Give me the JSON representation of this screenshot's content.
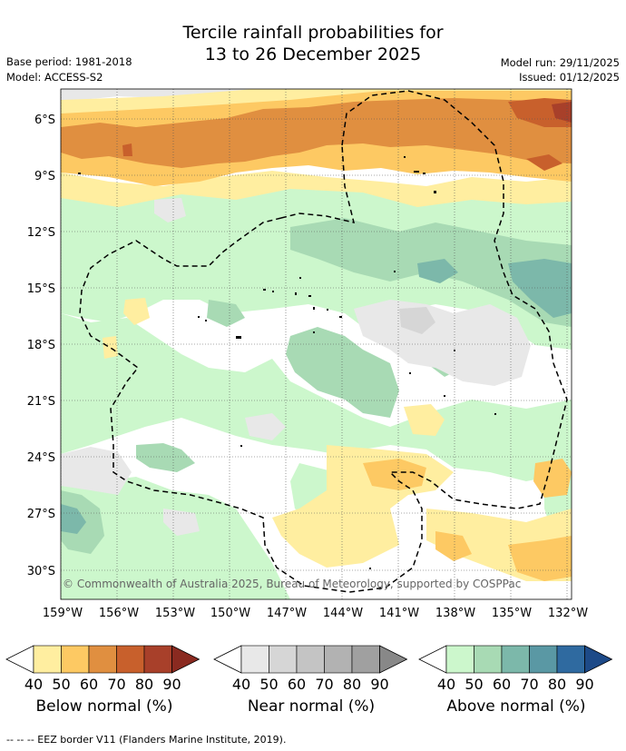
{
  "title": {
    "line1": "Tercile rainfall probabilities for",
    "line2": "13 to 26 December 2025"
  },
  "meta": {
    "base_period": "Base period: 1981-2018",
    "model": "Model: ACCESS-S2",
    "model_run": "Model run: 29/11/2025",
    "issued": "Issued: 01/12/2025"
  },
  "map": {
    "lat_labels": [
      "6°S",
      "9°S",
      "12°S",
      "15°S",
      "18°S",
      "21°S",
      "24°S",
      "27°S",
      "30°S"
    ],
    "lon_labels": [
      "159°W",
      "156°W",
      "153°W",
      "150°W",
      "147°W",
      "144°W",
      "141°W",
      "138°W",
      "135°W",
      "132°W"
    ],
    "copyright": "© Commonwealth of Australia 2025, Bureau of Meteorology, supported by COSPPac"
  },
  "colorbars": [
    {
      "label": "Below normal (%)",
      "ticks": [
        "40",
        "50",
        "60",
        "70",
        "80",
        "90"
      ],
      "colors": [
        "#ffeea0",
        "#fdc963",
        "#e08f40",
        "#c8602c",
        "#a8402a",
        "#8a2a20"
      ]
    },
    {
      "label": "Near normal (%)",
      "ticks": [
        "40",
        "50",
        "60",
        "70",
        "80",
        "90"
      ],
      "colors": [
        "#e8e8e8",
        "#d6d6d6",
        "#c4c4c4",
        "#b2b2b2",
        "#a0a0a0",
        "#888888"
      ]
    },
    {
      "label": "Above normal (%)",
      "ticks": [
        "40",
        "50",
        "60",
        "70",
        "80",
        "90"
      ],
      "colors": [
        "#ccf7cc",
        "#a8dab4",
        "#7cb8aa",
        "#5a98a4",
        "#2f6aa0",
        "#1d4a88"
      ]
    }
  ],
  "footer": "--  --  -- EEZ border V11 (Flanders Marine Institute, 2019)."
}
